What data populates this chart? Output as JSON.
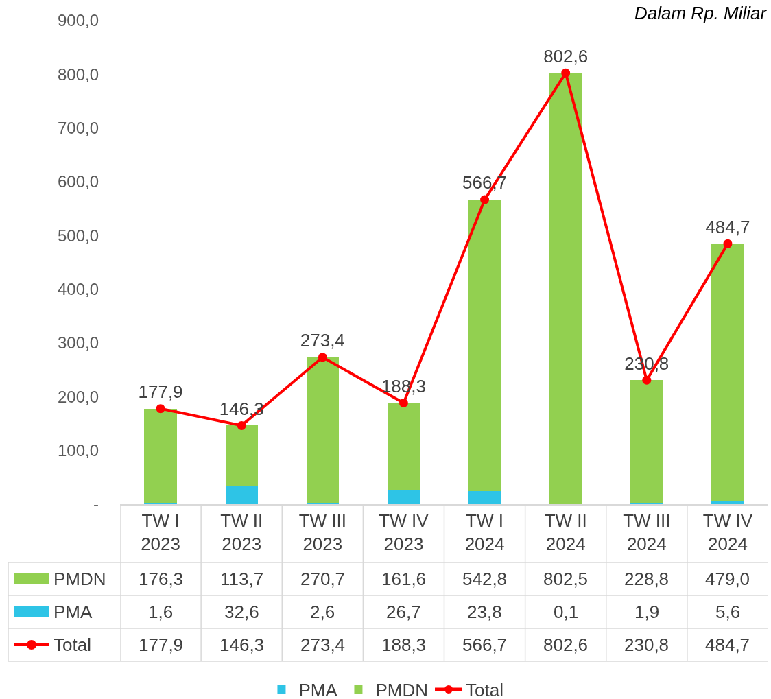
{
  "chart_data": {
    "type": "bar",
    "stacked": true,
    "categories": [
      "TW I\n2023",
      "TW II\n2023",
      "TW III\n2023",
      "TW IV\n2023",
      "TW I\n2024",
      "TW II\n2024",
      "TW III\n2024",
      "TW IV\n2024"
    ],
    "series": [
      {
        "name": "PMA",
        "color": "#2ec4e6",
        "values": [
          1.6,
          32.6,
          2.6,
          26.7,
          23.8,
          0.1,
          1.9,
          5.6
        ],
        "value_labels": [
          "1,6",
          "32,6",
          "2,6",
          "26,7",
          "23,8",
          "0,1",
          "1,9",
          "5,6"
        ]
      },
      {
        "name": "PMDN",
        "color": "#92d050",
        "values": [
          176.3,
          113.7,
          270.7,
          161.6,
          542.8,
          802.5,
          228.8,
          479.0
        ],
        "value_labels": [
          "176,3",
          "113,7",
          "270,7",
          "161,6",
          "542,8",
          "802,5",
          "228,8",
          "479,0"
        ]
      },
      {
        "name": "Total",
        "type": "line",
        "color": "#ff0000",
        "marker": "circle",
        "line_style": "solid",
        "values": [
          177.9,
          146.3,
          273.4,
          188.3,
          566.7,
          802.6,
          230.8,
          484.7
        ],
        "value_labels": [
          "177,9",
          "146,3",
          "273,4",
          "188,3",
          "566,7",
          "802,6",
          "230,8",
          "484,7"
        ]
      }
    ],
    "ylim": [
      0,
      900
    ],
    "yticks": [
      {
        "value": 0,
        "label": "-"
      },
      {
        "value": 100,
        "label": "100,0"
      },
      {
        "value": 200,
        "label": "200,0"
      },
      {
        "value": 300,
        "label": "300,0"
      },
      {
        "value": 400,
        "label": "400,0"
      },
      {
        "value": 500,
        "label": "500,0"
      },
      {
        "value": 600,
        "label": "600,0"
      },
      {
        "value": 700,
        "label": "700,0"
      },
      {
        "value": 800,
        "label": "800,0"
      },
      {
        "value": 900,
        "label": "900,0"
      }
    ],
    "annotations": [
      "Dalam Rp. Miliar"
    ],
    "legend": "bottom"
  }
}
